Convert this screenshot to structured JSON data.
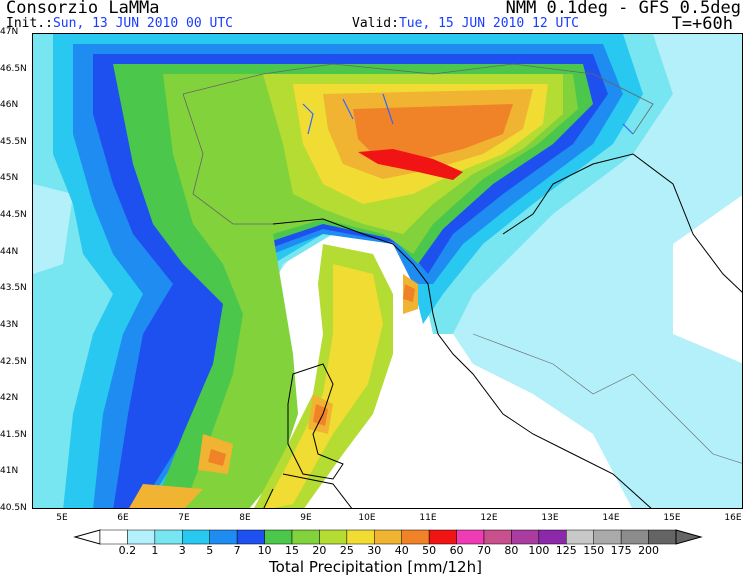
{
  "header": {
    "title": "Consorzio LaMMa",
    "model": "NMM 0.1deg - GFS 0.5deg",
    "init_label": "Init.:",
    "init_value": "Sun, 13 JUN 2010  00 UTC",
    "valid_label": "Valid:",
    "valid_value": "Tue, 15 JUN 2010  12 UTC",
    "forecast_step": "T=+60h"
  },
  "axes": {
    "lat_labels": [
      "47N",
      "46.5N",
      "46N",
      "45.5N",
      "45N",
      "44.5N",
      "44N",
      "43.5N",
      "43N",
      "42.5N",
      "42N",
      "41.5N",
      "41N",
      "40.5N"
    ],
    "lon_labels": [
      "5E",
      "6E",
      "7E",
      "8E",
      "9E",
      "10E",
      "11E",
      "12E",
      "13E",
      "14E",
      "15E",
      "16E"
    ]
  },
  "legend": {
    "title": "Total Precipitation [mm/12h]",
    "thresholds": [
      "0.2",
      "1",
      "3",
      "5",
      "7",
      "10",
      "15",
      "20",
      "25",
      "30",
      "40",
      "50",
      "60",
      "70",
      "80",
      "100",
      "125",
      "150",
      "175",
      "200"
    ],
    "colors": [
      "#b4f0fa",
      "#78e6f0",
      "#28c8f0",
      "#1e8cf0",
      "#1e50f0",
      "#4bc84b",
      "#82d23c",
      "#b4dc32",
      "#f0dc32",
      "#f0b432",
      "#f08228",
      "#f01414",
      "#f03cb4",
      "#c8508c",
      "#aa3ca0",
      "#8c28aa",
      "#c8c8c8",
      "#aaaaaa",
      "#8c8c8c",
      "#646464"
    ]
  },
  "colors": {
    "header_blue": "#1a3cff",
    "border": "#000000"
  }
}
